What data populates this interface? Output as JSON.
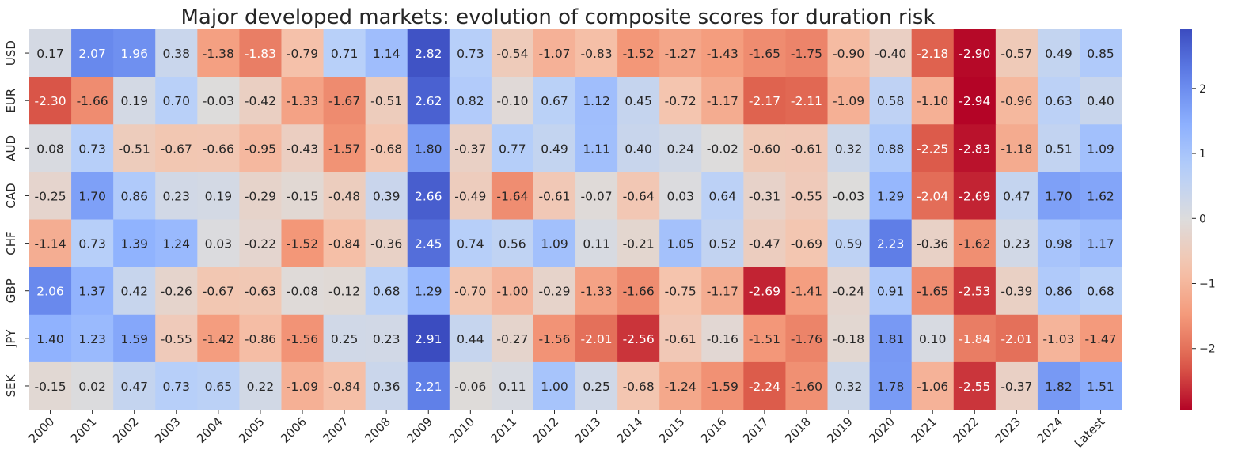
{
  "chart_data": {
    "type": "heatmap",
    "title": "Major developed markets: evolution of composite scores for duration risk",
    "x_categories": [
      "2000",
      "2001",
      "2002",
      "2003",
      "2004",
      "2005",
      "2006",
      "2007",
      "2008",
      "2009",
      "2010",
      "2011",
      "2012",
      "2013",
      "2014",
      "2015",
      "2016",
      "2017",
      "2018",
      "2019",
      "2020",
      "2021",
      "2022",
      "2023",
      "2024",
      "Latest"
    ],
    "y_categories": [
      "USD",
      "EUR",
      "AUD",
      "CAD",
      "CHF",
      "GBP",
      "JPY",
      "SEK"
    ],
    "values": [
      [
        0.17,
        2.07,
        1.96,
        0.38,
        -1.38,
        -1.83,
        -0.79,
        0.71,
        1.14,
        2.82,
        0.73,
        -0.54,
        -1.07,
        -0.83,
        -1.52,
        -1.27,
        -1.43,
        -1.65,
        -1.75,
        -0.9,
        -0.4,
        -2.18,
        -2.9,
        -0.57,
        0.49,
        0.85
      ],
      [
        -2.3,
        -1.66,
        0.19,
        0.7,
        -0.03,
        -0.42,
        -1.33,
        -1.67,
        -0.51,
        2.62,
        0.82,
        -0.1,
        0.67,
        1.12,
        0.45,
        -0.72,
        -1.17,
        -2.17,
        -2.11,
        -1.09,
        0.58,
        -1.1,
        -2.94,
        -0.96,
        0.63,
        0.4
      ],
      [
        0.08,
        0.73,
        -0.51,
        -0.67,
        -0.66,
        -0.95,
        -0.43,
        -1.57,
        -0.68,
        1.8,
        -0.37,
        0.77,
        0.49,
        1.11,
        0.4,
        0.24,
        -0.02,
        -0.6,
        -0.61,
        0.32,
        0.88,
        -2.25,
        -2.83,
        -1.18,
        0.51,
        1.09
      ],
      [
        -0.25,
        1.7,
        0.86,
        0.23,
        0.19,
        -0.29,
        -0.15,
        -0.48,
        0.39,
        2.66,
        -0.49,
        -1.64,
        -0.61,
        -0.07,
        -0.64,
        0.03,
        0.64,
        -0.31,
        -0.55,
        -0.03,
        1.29,
        -2.04,
        -2.69,
        0.47,
        1.7,
        1.62
      ],
      [
        -1.14,
        0.73,
        1.39,
        1.24,
        0.03,
        -0.22,
        -1.52,
        -0.84,
        -0.36,
        2.45,
        0.74,
        0.56,
        1.09,
        0.11,
        -0.21,
        1.05,
        0.52,
        -0.47,
        -0.69,
        0.59,
        2.23,
        -0.36,
        -1.62,
        0.23,
        0.98,
        1.17
      ],
      [
        2.06,
        1.37,
        0.42,
        -0.26,
        -0.67,
        -0.63,
        -0.08,
        -0.12,
        0.68,
        1.29,
        -0.7,
        -1.0,
        -0.29,
        -1.33,
        -1.66,
        -0.75,
        -1.17,
        -2.69,
        -1.41,
        -0.24,
        0.91,
        -1.65,
        -2.53,
        -0.39,
        0.86,
        0.68
      ],
      [
        1.4,
        1.23,
        1.59,
        -0.55,
        -1.42,
        -0.86,
        -1.56,
        0.25,
        0.23,
        2.91,
        0.44,
        -0.27,
        -1.56,
        -2.01,
        -2.56,
        -0.61,
        -0.16,
        -1.51,
        -1.76,
        -0.18,
        1.81,
        0.1,
        -1.84,
        -2.01,
        -1.03,
        -1.47
      ],
      [
        -0.15,
        0.02,
        0.47,
        0.73,
        0.65,
        0.22,
        -1.09,
        -0.84,
        0.36,
        2.21,
        -0.06,
        0.11,
        1.0,
        0.25,
        -0.68,
        -1.24,
        -1.59,
        -2.24,
        -1.6,
        0.32,
        1.78,
        -1.06,
        -2.55,
        -0.37,
        1.82,
        1.51
      ]
    ],
    "value_format": "0.00",
    "colormap": "coolwarm_r",
    "vmin": -2.94,
    "vmax": 2.91,
    "colorbar_ticks": [
      2,
      1,
      0,
      -1,
      -2
    ],
    "colorbar_tick_labels": [
      "2",
      "1",
      "0",
      "−1",
      "−2"
    ],
    "colors": {
      "low": "#b40426",
      "mid": "#dddcdc",
      "high": "#3b4cc0",
      "text_dark": "#262626",
      "text_light": "#ffffff"
    }
  }
}
